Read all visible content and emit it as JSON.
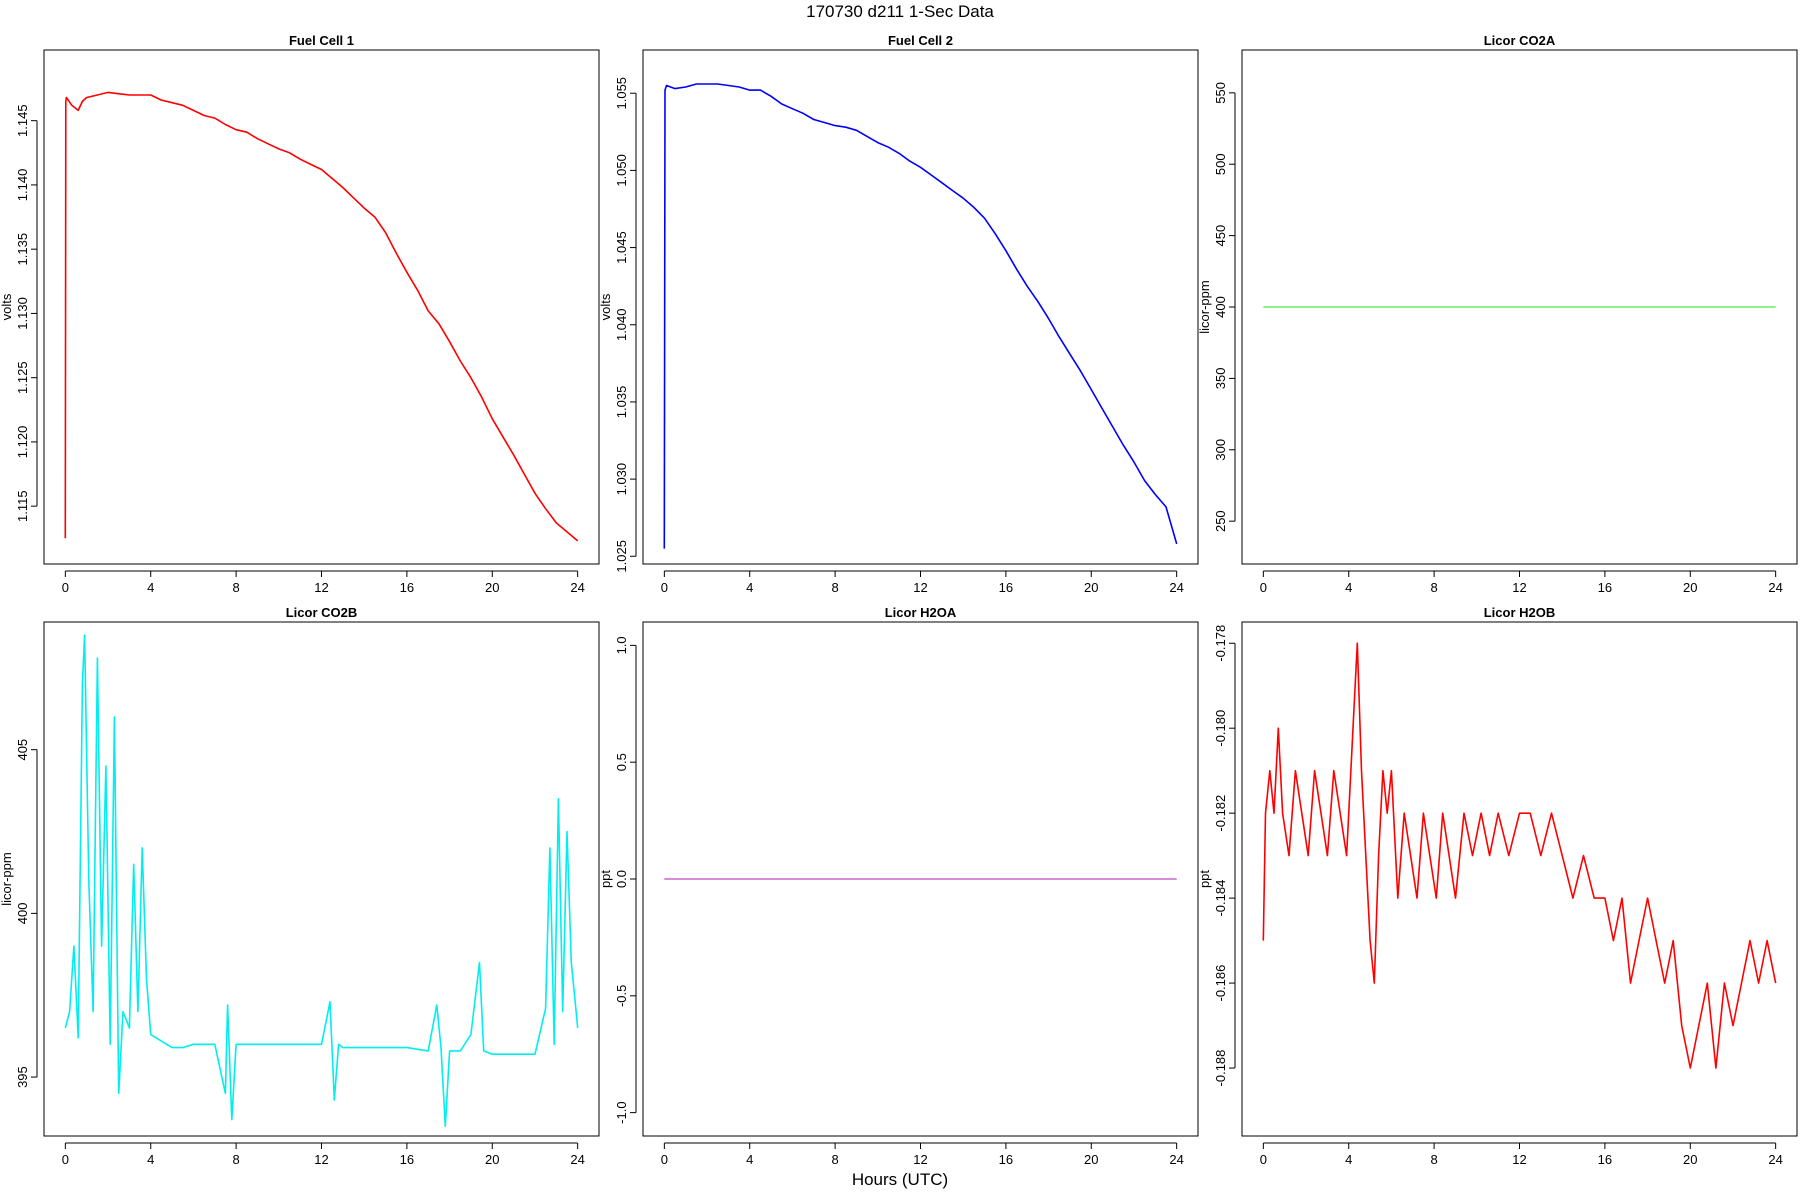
{
  "figure": {
    "title": "170730   d211   1-Sec Data",
    "xlabel": "Hours (UTC)"
  },
  "chart_data": [
    {
      "type": "line",
      "title": "Fuel Cell 1",
      "ylabel": "volts",
      "color": "#ff0000",
      "xlim": [
        -1,
        25
      ],
      "ylim": [
        1.1105,
        1.1505
      ],
      "xticks": [
        0,
        4,
        8,
        12,
        16,
        20,
        24
      ],
      "yticks": [
        1.115,
        1.12,
        1.125,
        1.13,
        1.135,
        1.14,
        1.145
      ],
      "ytick_labels": [
        "1.115",
        "1.120",
        "1.125",
        "1.130",
        "1.135",
        "1.140",
        "1.145"
      ],
      "series": [
        {
          "x": [
            0,
            0.02,
            0.05,
            0.3,
            0.6,
            0.8,
            1,
            1.5,
            2,
            2.5,
            3,
            3.5,
            4,
            4.5,
            5,
            5.5,
            6,
            6.5,
            7,
            7.5,
            8,
            8.5,
            9,
            9.5,
            10,
            10.5,
            11,
            11.5,
            12,
            12.5,
            13,
            13.5,
            14,
            14.5,
            15,
            15.5,
            16,
            16.5,
            17,
            17.5,
            18,
            18.5,
            19,
            19.5,
            20,
            20.5,
            21,
            21.5,
            22,
            22.5,
            23,
            23.5,
            24
          ],
          "y": [
            1.1125,
            1.1465,
            1.1468,
            1.1462,
            1.1458,
            1.1465,
            1.1468,
            1.147,
            1.1472,
            1.1471,
            1.147,
            1.147,
            1.147,
            1.1466,
            1.1464,
            1.1462,
            1.1458,
            1.1454,
            1.1452,
            1.1447,
            1.1443,
            1.1441,
            1.1436,
            1.1432,
            1.1428,
            1.1425,
            1.142,
            1.1416,
            1.1412,
            1.1405,
            1.1398,
            1.139,
            1.1382,
            1.1375,
            1.1363,
            1.1347,
            1.1332,
            1.1318,
            1.1302,
            1.1292,
            1.1278,
            1.1263,
            1.125,
            1.1235,
            1.1218,
            1.1204,
            1.119,
            1.1175,
            1.116,
            1.1148,
            1.1137,
            1.113,
            1.1123
          ]
        }
      ]
    },
    {
      "type": "line",
      "title": "Fuel Cell 2",
      "ylabel": "volts",
      "color": "#0000ff",
      "xlim": [
        -1,
        25
      ],
      "ylim": [
        1.0245,
        1.0578
      ],
      "xticks": [
        0,
        4,
        8,
        12,
        16,
        20,
        24
      ],
      "yticks": [
        1.025,
        1.03,
        1.035,
        1.04,
        1.045,
        1.05,
        1.055
      ],
      "ytick_labels": [
        "1.025",
        "1.030",
        "1.035",
        "1.040",
        "1.045",
        "1.050",
        "1.055"
      ],
      "series": [
        {
          "x": [
            0,
            0.03,
            0.1,
            0.5,
            1,
            1.5,
            2,
            2.5,
            3,
            3.5,
            4,
            4.5,
            5,
            5.5,
            6,
            6.5,
            7,
            7.5,
            8,
            8.5,
            9,
            9.5,
            10,
            10.5,
            11,
            11.5,
            12,
            12.5,
            13,
            13.5,
            14,
            14.5,
            15,
            15.5,
            16,
            16.5,
            17,
            17.5,
            18,
            18.5,
            19,
            19.5,
            20,
            20.5,
            21,
            21.5,
            22,
            22.5,
            23,
            23.5,
            24
          ],
          "y": [
            1.0255,
            1.0552,
            1.0555,
            1.0553,
            1.0554,
            1.0556,
            1.0556,
            1.0556,
            1.0555,
            1.0554,
            1.0552,
            1.0552,
            1.0548,
            1.0543,
            1.054,
            1.0537,
            1.0533,
            1.0531,
            1.0529,
            1.0528,
            1.0526,
            1.0522,
            1.0518,
            1.0515,
            1.0511,
            1.0506,
            1.0502,
            1.0497,
            1.0492,
            1.0487,
            1.0482,
            1.0476,
            1.0469,
            1.0459,
            1.0448,
            1.0436,
            1.0425,
            1.0415,
            1.0404,
            1.0392,
            1.0381,
            1.037,
            1.0358,
            1.0346,
            1.0334,
            1.0322,
            1.0311,
            1.0299,
            1.029,
            1.0282,
            1.0258
          ]
        }
      ]
    },
    {
      "type": "line",
      "title": "Licor CO2A",
      "ylabel": "licor-ppm",
      "color": "#66ee66",
      "xlim": [
        -1,
        25
      ],
      "ylim": [
        220,
        580
      ],
      "xticks": [
        0,
        4,
        8,
        12,
        16,
        20,
        24
      ],
      "yticks": [
        250,
        300,
        350,
        400,
        450,
        500,
        550
      ],
      "ytick_labels": [
        "250",
        "300",
        "350",
        "400",
        "450",
        "500",
        "550"
      ],
      "series": [
        {
          "x": [
            0,
            24
          ],
          "y": [
            400,
            400
          ]
        }
      ]
    },
    {
      "type": "line",
      "title": "Licor CO2B",
      "ylabel": "licor-ppm",
      "color": "#00eeee",
      "xlim": [
        -1,
        25
      ],
      "ylim": [
        393.2,
        408.9
      ],
      "xticks": [
        0,
        4,
        8,
        12,
        16,
        20,
        24
      ],
      "yticks": [
        395,
        400,
        405
      ],
      "ytick_labels": [
        "395",
        "400",
        "405"
      ],
      "series": [
        {
          "x": [
            0,
            0.2,
            0.4,
            0.6,
            0.8,
            0.9,
            1.1,
            1.3,
            1.5,
            1.7,
            1.9,
            2.1,
            2.3,
            2.5,
            2.7,
            3.0,
            3.2,
            3.4,
            3.6,
            3.8,
            4.0,
            4.5,
            5,
            5.5,
            6,
            7,
            7.5,
            7.6,
            7.8,
            8,
            9,
            10,
            11,
            12,
            12.4,
            12.6,
            12.8,
            13,
            14,
            15,
            16,
            17,
            17.4,
            17.6,
            17.8,
            18,
            18.5,
            19,
            19.4,
            19.6,
            20,
            21,
            22,
            22.5,
            22.7,
            22.9,
            23.1,
            23.3,
            23.5,
            23.7,
            23.9,
            24
          ],
          "y": [
            396.5,
            397,
            399,
            396.2,
            407,
            408.5,
            401,
            397,
            407.8,
            399,
            404.5,
            396,
            406,
            394.5,
            397,
            396.5,
            401.5,
            397,
            402,
            398,
            396.3,
            396.1,
            395.9,
            395.9,
            396,
            396,
            394.5,
            397.2,
            393.7,
            396,
            396,
            396,
            396,
            396,
            397.3,
            394.3,
            396,
            395.9,
            395.9,
            395.9,
            395.9,
            395.8,
            397.2,
            395.9,
            393.5,
            395.8,
            395.8,
            396.3,
            398.5,
            395.8,
            395.7,
            395.7,
            395.7,
            397.1,
            402,
            396,
            403.5,
            397,
            402.5,
            398.5,
            397.2,
            396.5
          ]
        }
      ]
    },
    {
      "type": "line",
      "title": "Licor H2OA",
      "ylabel": "ppt",
      "color": "#cc66cc",
      "xlim": [
        -1,
        25
      ],
      "ylim": [
        -1.1,
        1.1
      ],
      "xticks": [
        0,
        4,
        8,
        12,
        16,
        20,
        24
      ],
      "yticks": [
        -1.0,
        -0.5,
        0.0,
        0.5,
        1.0
      ],
      "ytick_labels": [
        "-1.0",
        "-0.5",
        "0.0",
        "0.5",
        "1.0"
      ],
      "series": [
        {
          "x": [
            0,
            24
          ],
          "y": [
            0,
            0
          ]
        }
      ]
    },
    {
      "type": "line",
      "title": "Licor H2OB",
      "ylabel": "ppt",
      "color": "#ff0000",
      "xlim": [
        -1,
        25
      ],
      "ylim": [
        -0.1896,
        -0.1775
      ],
      "xticks": [
        0,
        4,
        8,
        12,
        16,
        20,
        24
      ],
      "yticks": [
        -0.188,
        -0.186,
        -0.184,
        -0.182,
        -0.18,
        -0.178
      ],
      "ytick_labels": [
        "-0.188",
        "-0.186",
        "-0.184",
        "-0.182",
        "-0.180",
        "-0.178"
      ],
      "series": [
        {
          "x": [
            0,
            0.1,
            0.3,
            0.5,
            0.7,
            0.9,
            1.2,
            1.5,
            1.8,
            2.1,
            2.4,
            2.7,
            3.0,
            3.3,
            3.6,
            3.9,
            4.2,
            4.4,
            4.6,
            4.8,
            5.0,
            5.2,
            5.4,
            5.6,
            5.8,
            6.0,
            6.3,
            6.6,
            6.9,
            7.2,
            7.5,
            7.8,
            8.1,
            8.4,
            8.7,
            9.0,
            9.4,
            9.8,
            10.2,
            10.6,
            11.0,
            11.5,
            12.0,
            12.5,
            13.0,
            13.5,
            14.0,
            14.5,
            15.0,
            15.5,
            16.0,
            16.4,
            16.8,
            17.2,
            17.6,
            18.0,
            18.4,
            18.8,
            19.2,
            19.6,
            20.0,
            20.4,
            20.8,
            21.2,
            21.6,
            22.0,
            22.4,
            22.8,
            23.2,
            23.6,
            24.0
          ],
          "y": [
            -0.185,
            -0.182,
            -0.181,
            -0.182,
            -0.18,
            -0.182,
            -0.183,
            -0.181,
            -0.182,
            -0.183,
            -0.181,
            -0.182,
            -0.183,
            -0.181,
            -0.182,
            -0.183,
            -0.18,
            -0.178,
            -0.181,
            -0.183,
            -0.185,
            -0.186,
            -0.183,
            -0.181,
            -0.182,
            -0.181,
            -0.184,
            -0.182,
            -0.183,
            -0.184,
            -0.182,
            -0.183,
            -0.184,
            -0.182,
            -0.183,
            -0.184,
            -0.182,
            -0.183,
            -0.182,
            -0.183,
            -0.182,
            -0.183,
            -0.182,
            -0.182,
            -0.183,
            -0.182,
            -0.183,
            -0.184,
            -0.183,
            -0.184,
            -0.184,
            -0.185,
            -0.184,
            -0.186,
            -0.185,
            -0.184,
            -0.185,
            -0.186,
            -0.185,
            -0.187,
            -0.188,
            -0.187,
            -0.186,
            -0.188,
            -0.186,
            -0.187,
            -0.186,
            -0.185,
            -0.186,
            -0.185,
            -0.186
          ]
        }
      ]
    }
  ]
}
